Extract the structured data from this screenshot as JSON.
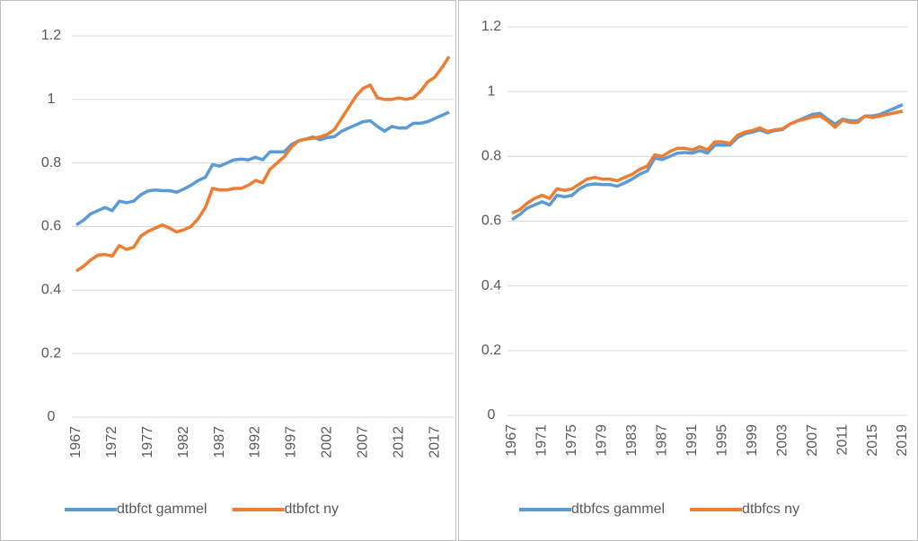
{
  "chart_data": [
    {
      "type": "line",
      "x": [
        1967,
        1968,
        1969,
        1970,
        1971,
        1972,
        1973,
        1974,
        1975,
        1976,
        1977,
        1978,
        1979,
        1980,
        1981,
        1982,
        1983,
        1984,
        1985,
        1986,
        1987,
        1988,
        1989,
        1990,
        1991,
        1992,
        1993,
        1994,
        1995,
        1996,
        1997,
        1998,
        1999,
        2000,
        2001,
        2002,
        2003,
        2004,
        2005,
        2006,
        2007,
        2008,
        2009,
        2010,
        2011,
        2012,
        2013,
        2014,
        2015,
        2016,
        2017,
        2018,
        2019
      ],
      "xlim": [
        1967,
        2019
      ],
      "xticks": [
        1967,
        1972,
        1977,
        1982,
        1987,
        1992,
        1997,
        2002,
        2007,
        2012,
        2017
      ],
      "ylim": [
        0,
        1.2
      ],
      "yticks": [
        0,
        0.2,
        0.4,
        0.6,
        0.8,
        1,
        1.2
      ],
      "grid": true,
      "legend": "bottom",
      "series": [
        {
          "name": "dtbfct gammel",
          "color": "#5b9bd5",
          "values": [
            0.605,
            0.62,
            0.64,
            0.65,
            0.66,
            0.65,
            0.68,
            0.675,
            0.68,
            0.7,
            0.712,
            0.715,
            0.713,
            0.713,
            0.708,
            0.718,
            0.73,
            0.745,
            0.755,
            0.795,
            0.79,
            0.8,
            0.81,
            0.812,
            0.81,
            0.818,
            0.81,
            0.835,
            0.835,
            0.835,
            0.858,
            0.87,
            0.875,
            0.882,
            0.873,
            0.88,
            0.883,
            0.9,
            0.91,
            0.92,
            0.93,
            0.933,
            0.915,
            0.9,
            0.915,
            0.91,
            0.91,
            0.925,
            0.925,
            0.93,
            0.94,
            0.95,
            0.96
          ]
        },
        {
          "name": "dtbfct ny",
          "color": "#ed7d31",
          "values": [
            0.46,
            0.475,
            0.495,
            0.51,
            0.512,
            0.507,
            0.54,
            0.528,
            0.535,
            0.57,
            0.585,
            0.595,
            0.605,
            0.595,
            0.583,
            0.59,
            0.6,
            0.625,
            0.66,
            0.72,
            0.715,
            0.715,
            0.72,
            0.72,
            0.73,
            0.745,
            0.738,
            0.78,
            0.8,
            0.82,
            0.85,
            0.87,
            0.875,
            0.878,
            0.882,
            0.89,
            0.905,
            0.94,
            0.975,
            1.01,
            1.035,
            1.045,
            1.005,
            1.0,
            1.0,
            1.005,
            1.0,
            1.005,
            1.025,
            1.055,
            1.07,
            1.1,
            1.135
          ]
        }
      ]
    },
    {
      "type": "line",
      "x": [
        1967,
        1968,
        1969,
        1970,
        1971,
        1972,
        1973,
        1974,
        1975,
        1976,
        1977,
        1978,
        1979,
        1980,
        1981,
        1982,
        1983,
        1984,
        1985,
        1986,
        1987,
        1988,
        1989,
        1990,
        1991,
        1992,
        1993,
        1994,
        1995,
        1996,
        1997,
        1998,
        1999,
        2000,
        2001,
        2002,
        2003,
        2004,
        2005,
        2006,
        2007,
        2008,
        2009,
        2010,
        2011,
        2012,
        2013,
        2014,
        2015,
        2016,
        2017,
        2018,
        2019
      ],
      "xlim": [
        1967,
        2019
      ],
      "xticks": [
        1967,
        1971,
        1975,
        1979,
        1983,
        1987,
        1991,
        1995,
        1999,
        2003,
        2007,
        2011,
        2015,
        2019
      ],
      "ylim": [
        0,
        1.2
      ],
      "yticks": [
        0,
        0.2,
        0.4,
        0.6,
        0.8,
        1,
        1.2
      ],
      "grid": true,
      "legend": "bottom",
      "series": [
        {
          "name": "dtbfcs gammel",
          "color": "#5b9bd5",
          "values": [
            0.605,
            0.62,
            0.64,
            0.65,
            0.66,
            0.65,
            0.68,
            0.675,
            0.68,
            0.7,
            0.712,
            0.715,
            0.713,
            0.713,
            0.708,
            0.718,
            0.73,
            0.745,
            0.755,
            0.795,
            0.79,
            0.8,
            0.81,
            0.812,
            0.81,
            0.818,
            0.81,
            0.835,
            0.835,
            0.835,
            0.858,
            0.87,
            0.875,
            0.882,
            0.873,
            0.88,
            0.883,
            0.9,
            0.91,
            0.92,
            0.93,
            0.933,
            0.915,
            0.9,
            0.915,
            0.91,
            0.91,
            0.925,
            0.925,
            0.93,
            0.94,
            0.95,
            0.96
          ]
        },
        {
          "name": "dtbfcs ny",
          "color": "#ed7d31",
          "values": [
            0.625,
            0.635,
            0.655,
            0.67,
            0.68,
            0.67,
            0.7,
            0.695,
            0.7,
            0.715,
            0.73,
            0.735,
            0.73,
            0.73,
            0.725,
            0.735,
            0.745,
            0.76,
            0.77,
            0.805,
            0.8,
            0.815,
            0.825,
            0.825,
            0.82,
            0.83,
            0.82,
            0.845,
            0.845,
            0.84,
            0.865,
            0.875,
            0.88,
            0.888,
            0.877,
            0.882,
            0.885,
            0.9,
            0.91,
            0.915,
            0.922,
            0.925,
            0.91,
            0.89,
            0.912,
            0.905,
            0.905,
            0.925,
            0.92,
            0.925,
            0.93,
            0.935,
            0.94
          ]
        }
      ]
    }
  ]
}
